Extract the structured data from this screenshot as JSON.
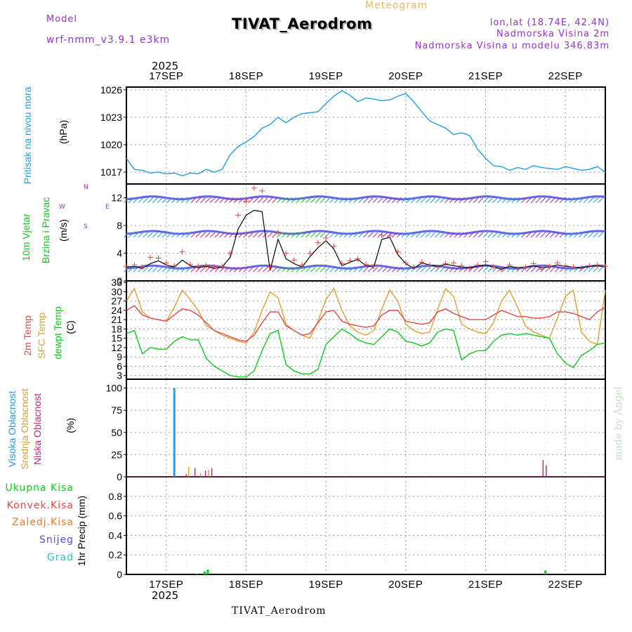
{
  "header": {
    "model_label": "Model",
    "model_name": "wrf-nmm_v3.9.1 e3km",
    "title": "TIVAT_Aerodrom",
    "meteogram_label": "Meteogram",
    "coords": "lon,lat (18.74E, 42.4N)",
    "altitude": "Nadmorska Visina 2m",
    "model_altitude": "Nadmorska Visina u modelu 346.83m"
  },
  "footer": {
    "station": "TIVAT_Aerodrom",
    "credit": "made by Angel"
  },
  "colors": {
    "pressure": "#1ea0e6",
    "wind_green": "#10c81e",
    "temp": "#e64646",
    "sfc": "#e0a030",
    "dew": "#10c81e",
    "high_cloud": "#1ea0e6",
    "mid_cloud": "#e0a030",
    "low_cloud": "#c8287a",
    "conv": "#e64646",
    "frozen": "#f07828",
    "snow": "#5050e6",
    "hail": "#28c8b4",
    "gust": "#e64646",
    "purple": "#9632c8"
  },
  "time_axis": {
    "year": "2025",
    "days": [
      "17SEP",
      "18SEP",
      "19SEP",
      "20SEP",
      "21SEP",
      "22SEP"
    ],
    "start_day_offset": -0.5,
    "end_day_offset": 5.5
  },
  "panels": {
    "pressure": {
      "label_left": "Pritisak na nivou mora",
      "unit": "(hPa)"
    },
    "wind": {
      "label_left1": "10m Vjetar",
      "label_left2": "Brzina i Pravac",
      "unit": "(m/s)",
      "compass_n": "N",
      "compass_w": "W",
      "compass_e": "E",
      "compass_s": "S"
    },
    "temp": {
      "label1": "2m Temp",
      "label2": "SFC Temp",
      "label3": "dewpt Temp",
      "unit": "(C)"
    },
    "cloud": {
      "label1": "Visoka Oblacnost",
      "label2": "Srednja Oblacnost",
      "label3": "Niska Oblacnost",
      "unit": "(%)"
    },
    "precip": {
      "label1": "Ukupna Kisa",
      "label2": "Konvek.Kisa",
      "label3": "Zaledj.Kisa",
      "label4": "Snijeg",
      "label5": "Grad",
      "unit": "1hr Precip (mm)"
    }
  },
  "chart_data": [
    {
      "type": "line",
      "name": "pressure",
      "ylabel": "Pritisak na nivou mora (hPa)",
      "ylim": [
        1015.7,
        1026.3
      ],
      "yticks": [
        "1017",
        "1020",
        "1023",
        "1026"
      ],
      "x": [
        -0.5,
        -0.4,
        -0.3,
        -0.2,
        -0.1,
        0.0,
        0.1,
        0.2,
        0.3,
        0.4,
        0.5,
        0.6,
        0.7,
        0.8,
        0.9,
        1.0,
        1.1,
        1.2,
        1.3,
        1.4,
        1.5,
        1.6,
        1.7,
        1.8,
        1.9,
        2.0,
        2.1,
        2.2,
        2.3,
        2.4,
        2.5,
        2.6,
        2.7,
        2.8,
        2.9,
        3.0,
        3.1,
        3.2,
        3.3,
        3.4,
        3.5,
        3.6,
        3.7,
        3.8,
        3.9,
        4.0,
        4.1,
        4.2,
        4.3,
        4.4,
        4.5,
        4.6,
        4.7,
        4.8,
        4.9,
        5.0,
        5.1,
        5.2,
        5.3,
        5.4,
        5.5
      ],
      "values": [
        1018.5,
        1017.3,
        1017.2,
        1016.9,
        1017.0,
        1016.8,
        1016.9,
        1016.6,
        1016.9,
        1016.8,
        1017.3,
        1017.0,
        1017.3,
        1018.9,
        1019.8,
        1020.3,
        1020.9,
        1021.8,
        1022.2,
        1023.0,
        1022.4,
        1023.0,
        1023.4,
        1023.5,
        1023.6,
        1024.5,
        1025.3,
        1025.9,
        1025.4,
        1024.7,
        1025.1,
        1025.0,
        1024.8,
        1024.9,
        1025.3,
        1025.6,
        1024.7,
        1023.6,
        1022.6,
        1022.2,
        1021.8,
        1021.1,
        1021.3,
        1021.0,
        1019.5,
        1018.5,
        1017.7,
        1017.6,
        1017.2,
        1017.5,
        1017.3,
        1017.7,
        1017.5,
        1017.4,
        1017.3,
        1017.6,
        1017.4,
        1017.2,
        1017.3,
        1017.6,
        1017.0
      ]
    },
    {
      "type": "line",
      "name": "wind",
      "ylabel": "10m Vjetar Brzina i Pravac (m/s)",
      "ylim": [
        0,
        14
      ],
      "yticks": [
        "0",
        "4",
        "8",
        "12"
      ],
      "x": [
        -0.5,
        -0.4,
        -0.3,
        -0.2,
        -0.1,
        0.0,
        0.1,
        0.2,
        0.3,
        0.4,
        0.5,
        0.6,
        0.7,
        0.8,
        0.9,
        1.0,
        1.1,
        1.2,
        1.3,
        1.4,
        1.5,
        1.6,
        1.7,
        1.8,
        1.9,
        2.0,
        2.1,
        2.2,
        2.3,
        2.4,
        2.5,
        2.6,
        2.7,
        2.8,
        2.9,
        3.0,
        3.1,
        3.2,
        3.3,
        3.4,
        3.5,
        3.6,
        3.7,
        3.8,
        3.9,
        4.0,
        4.1,
        4.2,
        4.3,
        4.4,
        4.5,
        4.6,
        4.7,
        4.8,
        4.9,
        5.0,
        5.1,
        5.2,
        5.3,
        5.4,
        5.5
      ],
      "series": [
        {
          "name": "speed",
          "values": [
            2.0,
            2.1,
            1.8,
            2.5,
            2.9,
            2.3,
            2.0,
            3.0,
            2.2,
            1.9,
            2.1,
            1.8,
            2.0,
            3.4,
            7.5,
            9.5,
            10.2,
            10.0,
            1.5,
            6.0,
            3.2,
            2.5,
            2.0,
            3.5,
            4.8,
            5.8,
            4.6,
            2.2,
            2.7,
            3.1,
            2.2,
            2.0,
            6.0,
            6.3,
            3.8,
            2.5,
            1.8,
            2.6,
            2.3,
            2.1,
            2.4,
            2.2,
            2.0,
            1.9,
            2.1,
            2.3,
            2.0,
            1.7,
            2.1,
            1.9,
            2.0,
            2.2,
            1.9,
            2.0,
            2.3,
            2.1,
            2.0,
            1.9,
            2.1,
            2.2,
            2.0
          ]
        },
        {
          "name": "gust",
          "values": [
            2.1,
            2.3,
            2.0,
            3.4,
            3.3,
            2.6,
            2.2,
            4.2,
            2.4,
            2.1,
            2.2,
            2.0,
            2.1,
            4.0,
            9.5,
            11.5,
            13.4,
            13.0,
            2.0,
            7.0,
            4.0,
            3.0,
            2.3,
            4.0,
            5.5,
            6.2,
            5.0,
            2.5,
            2.9,
            3.2,
            2.4,
            2.1,
            6.6,
            6.5,
            4.2,
            2.6,
            2.0,
            2.7,
            2.3,
            2.0,
            2.5,
            2.6,
            2.2,
            1.8,
            2.3,
            2.8,
            2.0,
            1.6,
            2.3,
            1.7,
            2.0,
            2.5,
            1.7,
            2.1,
            2.6,
            2.2,
            2.0,
            1.8,
            2.2,
            2.3,
            2.1
          ]
        }
      ]
    },
    {
      "type": "line",
      "name": "temperature",
      "ylabel": "Temp (C)",
      "ylim": [
        1.8,
        33.5
      ],
      "yticks": [
        "3",
        "6",
        "9",
        "12",
        "15",
        "18",
        "21",
        "24",
        "27",
        "30",
        "33"
      ],
      "x": [
        -0.5,
        -0.4,
        -0.3,
        -0.2,
        -0.1,
        0.0,
        0.1,
        0.2,
        0.3,
        0.4,
        0.5,
        0.6,
        0.7,
        0.8,
        0.9,
        1.0,
        1.1,
        1.2,
        1.3,
        1.4,
        1.5,
        1.6,
        1.7,
        1.8,
        1.9,
        2.0,
        2.1,
        2.2,
        2.3,
        2.4,
        2.5,
        2.6,
        2.7,
        2.8,
        2.9,
        3.0,
        3.1,
        3.2,
        3.3,
        3.4,
        3.5,
        3.6,
        3.7,
        3.8,
        3.9,
        4.0,
        4.1,
        4.2,
        4.3,
        4.4,
        4.5,
        4.6,
        4.7,
        4.8,
        4.9,
        5.0,
        5.1,
        5.2,
        5.3,
        5.4,
        5.5
      ],
      "series": [
        {
          "name": "2m Temp",
          "values": [
            24.0,
            25.5,
            22.5,
            21.5,
            21.0,
            20.5,
            22.5,
            24.5,
            24.0,
            22.5,
            20.0,
            17.5,
            16.5,
            15.5,
            14.5,
            14.0,
            16.0,
            20.0,
            23.5,
            23.5,
            19.0,
            17.5,
            16.0,
            16.5,
            20.0,
            23.5,
            24.0,
            20.5,
            19.5,
            19.0,
            18.5,
            19.0,
            22.5,
            24.0,
            24.0,
            20.5,
            20.0,
            19.5,
            20.0,
            23.5,
            24.5,
            23.0,
            22.0,
            21.0,
            21.0,
            21.0,
            22.5,
            24.0,
            23.0,
            22.0,
            22.0,
            21.5,
            21.5,
            22.0,
            23.5,
            23.5,
            23.0,
            22.0,
            21.0,
            23.5,
            25.0
          ]
        },
        {
          "name": "SFC Temp",
          "values": [
            27.0,
            31.0,
            23.5,
            21.5,
            21.0,
            20.5,
            25.0,
            30.5,
            27.5,
            24.0,
            19.0,
            17.5,
            16.0,
            15.0,
            14.0,
            13.5,
            17.0,
            24.0,
            30.0,
            28.0,
            19.5,
            17.5,
            16.0,
            15.0,
            20.5,
            27.5,
            31.0,
            24.0,
            19.0,
            17.0,
            16.0,
            17.5,
            24.5,
            30.5,
            27.0,
            19.5,
            17.5,
            16.5,
            17.0,
            24.5,
            31.0,
            28.5,
            19.5,
            18.0,
            17.0,
            16.5,
            20.0,
            27.0,
            30.5,
            25.0,
            19.0,
            17.0,
            16.0,
            15.0,
            21.5,
            28.5,
            30.5,
            17.0,
            14.0,
            13.0,
            30.5
          ]
        },
        {
          "name": "dewpt Temp",
          "values": [
            16.5,
            17.5,
            10.0,
            12.0,
            11.5,
            11.5,
            14.0,
            15.5,
            14.5,
            14.5,
            8.5,
            6.0,
            4.5,
            3.0,
            2.5,
            2.5,
            4.5,
            11.0,
            16.5,
            17.5,
            6.5,
            4.5,
            3.5,
            3.5,
            5.0,
            13.0,
            15.5,
            18.0,
            16.5,
            14.5,
            13.5,
            13.0,
            15.5,
            18.0,
            17.0,
            14.0,
            13.5,
            12.5,
            13.5,
            17.0,
            18.0,
            17.5,
            8.0,
            10.0,
            11.0,
            11.0,
            14.0,
            16.0,
            16.5,
            16.0,
            16.5,
            16.0,
            15.5,
            15.0,
            10.0,
            7.0,
            5.5,
            9.5,
            11.0,
            13.0,
            13.5
          ]
        }
      ]
    },
    {
      "type": "bar",
      "name": "cloud",
      "ylabel": "Oblacnost (%)",
      "ylim": [
        0,
        110
      ],
      "yticks": [
        "0",
        "25",
        "50",
        "75",
        "100"
      ],
      "series": [
        {
          "name": "Visoka Oblacnost",
          "x": [
            0.1
          ],
          "values": [
            100
          ]
        },
        {
          "name": "Srednja Oblacnost",
          "x": [
            0.28,
            0.43,
            0.53
          ],
          "values": [
            11,
            4,
            8
          ]
        },
        {
          "name": "Niska Oblacnost",
          "x": [
            0.25,
            0.36,
            0.49,
            0.57,
            4.72,
            4.76
          ],
          "values": [
            3,
            10,
            7,
            10,
            19,
            13
          ]
        }
      ]
    },
    {
      "type": "bar",
      "name": "precip",
      "ylabel": "1hr Precip (mm)",
      "ylim": [
        0,
        1.0
      ],
      "yticks": [
        "0",
        "0.2",
        "0.4",
        "0.6",
        "0.8"
      ],
      "series": [
        {
          "name": "Ukupna Kisa",
          "x": [
            0.38,
            0.48,
            0.52,
            4.75
          ],
          "values": [
            0.01,
            0.03,
            0.05,
            0.04
          ]
        }
      ]
    }
  ]
}
